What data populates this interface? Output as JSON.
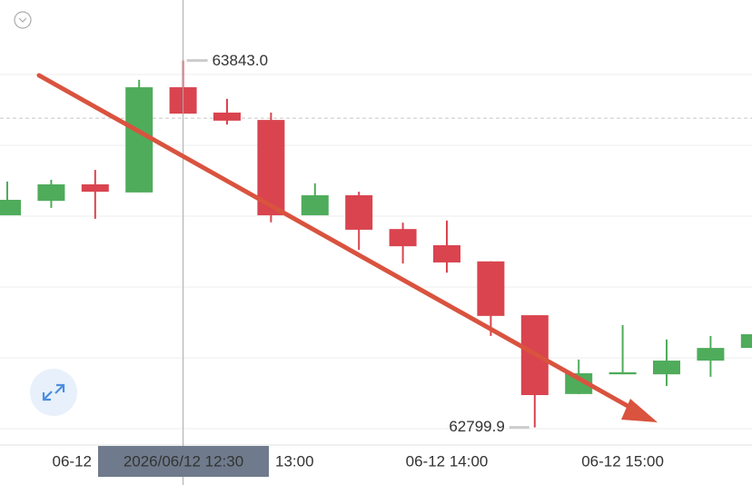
{
  "chart_data": {
    "type": "candlestick",
    "categories": [
      null,
      null,
      "06-12",
      null,
      null,
      null,
      "13:00",
      null,
      null,
      null,
      "06-12 14:00",
      null,
      null,
      null,
      "06-12 15:00",
      null,
      null,
      null
    ],
    "open": [
      63403,
      63444,
      63491,
      63468,
      63767,
      63695,
      63674,
      63403,
      63460,
      63364,
      63318,
      63272,
      63119,
      62895,
      62951,
      62951,
      62990,
      63026
    ],
    "high": [
      63499,
      63504,
      63532,
      63788,
      63843.0,
      63734,
      63695,
      63494,
      63470,
      63382,
      63388,
      63272,
      63119,
      62993,
      63091,
      63050,
      63060,
      63065
    ],
    "low": [
      63403,
      63424,
      63393,
      63468,
      63692,
      63661,
      63383,
      63403,
      63305,
      63266,
      63240,
      63060,
      62799.9,
      62895,
      62951,
      62918,
      62944,
      63026
    ],
    "close": [
      63447,
      63491,
      63470,
      63767,
      63692,
      63672,
      63403,
      63460,
      63362,
      63315,
      63269,
      63117,
      62892,
      62954,
      62957,
      62990,
      63026,
      63065
    ],
    "up_color": "#4fac5b",
    "down_color": "#d9444f",
    "ylim": [
      62750,
      64015
    ],
    "price_line": 63679,
    "high_label": "63843.0",
    "low_label": "62799.9",
    "crosshair_label": "2026/06/12 12:30",
    "crosshair_index": 4
  }
}
